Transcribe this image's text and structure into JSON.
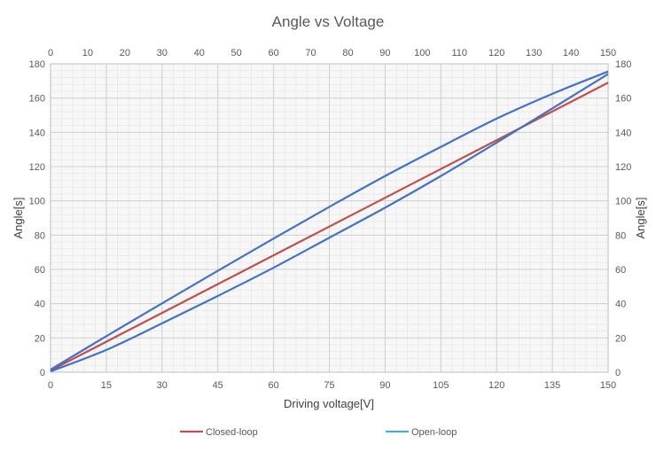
{
  "chart_data": {
    "type": "line",
    "title": "Angle vs Voltage",
    "xlabel": "Driving voltage[V]",
    "ylabel": "Angle[s]",
    "ylabel_right": "Angle[s]",
    "xlim": [
      0,
      150
    ],
    "ylim": [
      0,
      180
    ],
    "x_ticks_bottom": [
      "0",
      "15",
      "30",
      "45",
      "60",
      "75",
      "90",
      "105",
      "120",
      "135",
      "150"
    ],
    "x_ticks_top": [
      "0",
      "10",
      "20",
      "30",
      "40",
      "50",
      "60",
      "70",
      "80",
      "90",
      "100",
      "110",
      "120",
      "130",
      "140",
      "150"
    ],
    "y_ticks": [
      "0",
      "20",
      "40",
      "60",
      "80",
      "100",
      "120",
      "140",
      "160",
      "180"
    ],
    "grid": true,
    "legend_position": "bottom",
    "series": [
      {
        "name": "Closed-loop",
        "color": "#c0504d",
        "x": [
          0,
          15,
          30,
          45,
          60,
          75,
          90,
          105,
          120,
          135,
          150
        ],
        "y": [
          1,
          17.8,
          34.6,
          51.4,
          68.2,
          85,
          101.8,
          118.6,
          135.4,
          152.2,
          169
        ]
      },
      {
        "name": "Open-loop",
        "color": "#4472c4",
        "x": [
          0,
          15,
          30,
          45,
          60,
          75,
          90,
          105,
          120,
          135,
          150
        ],
        "y": [
          1.5,
          21,
          40.2,
          59.2,
          78,
          96.5,
          114.5,
          131.5,
          148,
          162.5,
          175.5
        ]
      },
      {
        "name": "",
        "color": "#4472c4",
        "x": [
          0,
          15,
          30,
          45,
          60,
          75,
          90,
          105,
          120,
          135,
          150
        ],
        "y": [
          0.5,
          13,
          28.5,
          44.5,
          61,
          78.5,
          96,
          114.5,
          134,
          154,
          174
        ]
      }
    ],
    "legend": [
      {
        "label": "Closed-loop",
        "color": "#c0504d"
      },
      {
        "label": "Open-loop",
        "color": "#4bacc6"
      }
    ]
  }
}
